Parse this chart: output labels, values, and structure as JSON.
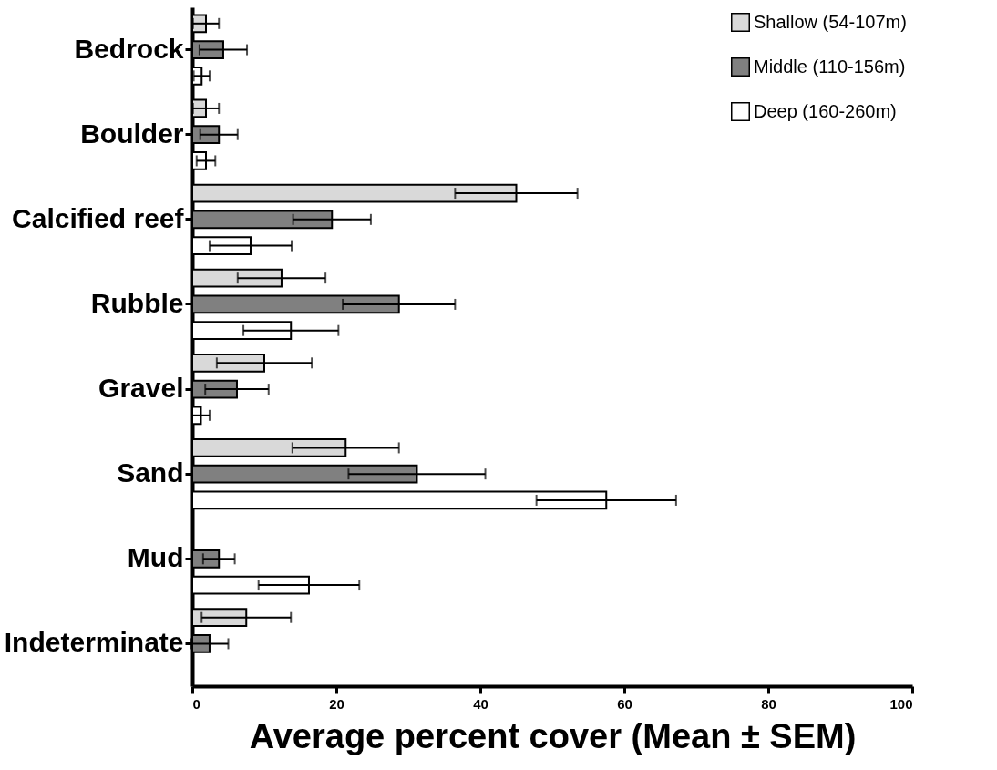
{
  "chart_data": {
    "type": "bar",
    "orientation": "horizontal",
    "xlabel": "Average percent cover (Mean ± SEM)",
    "categories": [
      "Bedrock",
      "Boulder",
      "Calcified reef",
      "Rubble",
      "Gravel",
      "Sand",
      "Mud",
      "Indeterminate"
    ],
    "series": [
      {
        "name": "Shallow (54-107m)",
        "color": "#d9d9d9",
        "values": [
          1.9,
          1.9,
          45.0,
          12.4,
          10.0,
          21.3,
          null,
          7.5
        ],
        "errors": [
          1.8,
          1.8,
          8.5,
          6.1,
          6.6,
          7.4,
          null,
          6.2
        ]
      },
      {
        "name": "Middle (110-156m)",
        "color": "#808080",
        "values": [
          4.3,
          3.7,
          19.4,
          28.7,
          6.2,
          31.2,
          3.7,
          2.4
        ],
        "errors": [
          3.3,
          2.6,
          5.4,
          7.8,
          4.4,
          9.5,
          2.2,
          2.6
        ]
      },
      {
        "name": "Deep (160-260m)",
        "color": "#ffffff",
        "values": [
          1.3,
          1.9,
          8.1,
          13.7,
          1.2,
          57.5,
          16.2,
          null
        ],
        "errors": [
          1.1,
          1.3,
          5.7,
          6.6,
          1.2,
          9.7,
          7.0,
          null
        ]
      }
    ],
    "xlim": [
      0,
      100
    ],
    "xticks": [
      0,
      20,
      40,
      60,
      80,
      100
    ],
    "grid": false,
    "legend": "top right"
  }
}
